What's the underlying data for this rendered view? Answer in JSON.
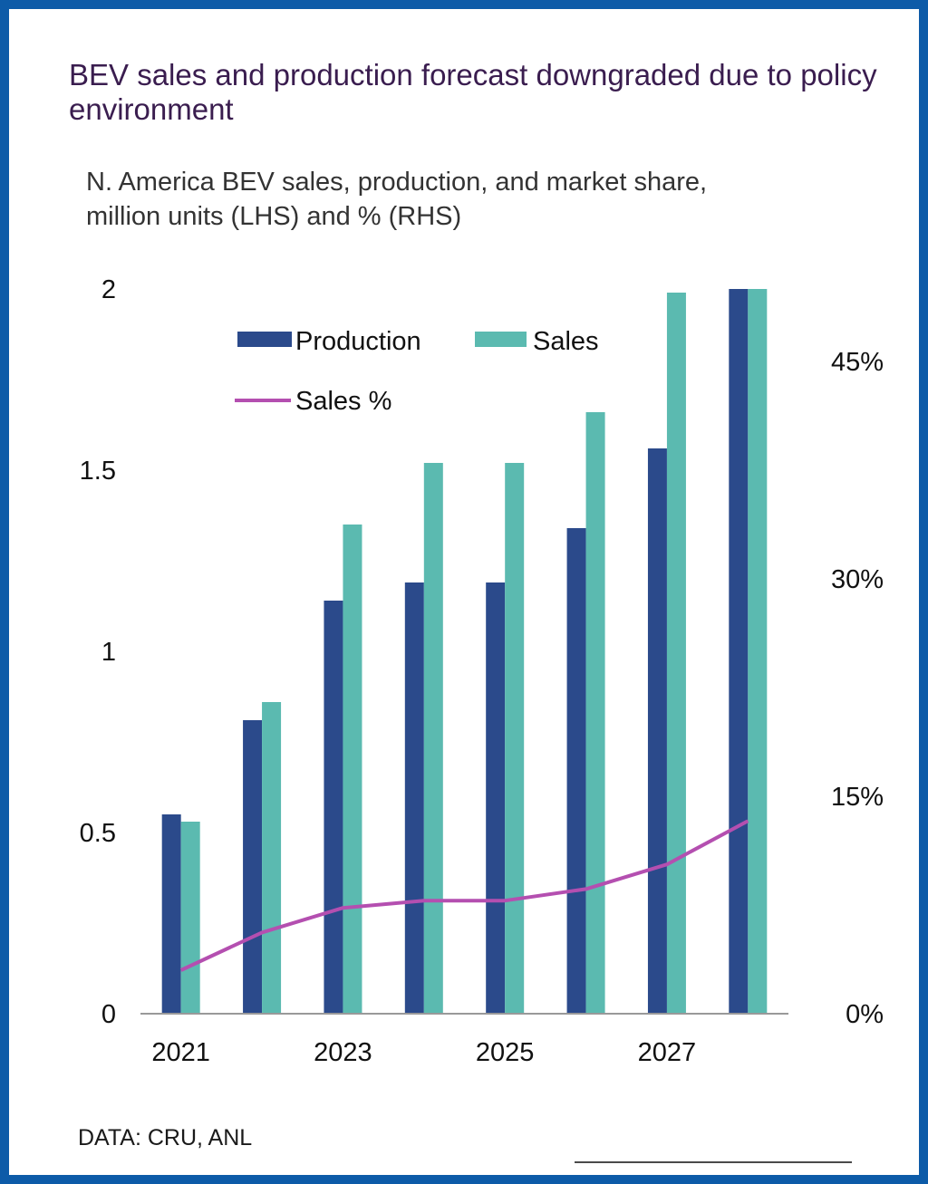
{
  "header": {
    "title": "BEV sales and production forecast downgraded due to policy environment",
    "subtitle": "N. America BEV sales, production, and market share, million units (LHS) and % (RHS)"
  },
  "footer": {
    "source": "DATA: CRU, ANL"
  },
  "colors": {
    "frame": "#0d5ba8",
    "production": "#2b4a8b",
    "sales": "#5bbab0",
    "sales_pct": "#b44fb0"
  },
  "chart_data": {
    "type": "bar",
    "categories": [
      "2021",
      "2022",
      "2023",
      "2024",
      "2025",
      "2026",
      "2027",
      "2028"
    ],
    "x_tick_labels": [
      "2021",
      "",
      "2023",
      "",
      "2025",
      "",
      "2027",
      ""
    ],
    "series": [
      {
        "name": "Production",
        "type": "bar",
        "axis": "left",
        "values": [
          0.55,
          0.81,
          1.14,
          1.19,
          1.19,
          1.34,
          1.56,
          2.0
        ]
      },
      {
        "name": "Sales",
        "type": "bar",
        "axis": "left",
        "values": [
          0.53,
          0.86,
          1.35,
          1.52,
          1.52,
          1.66,
          1.99,
          2.0
        ]
      },
      {
        "name": "Sales %",
        "type": "line",
        "axis": "right",
        "values": [
          3.0,
          5.6,
          7.3,
          7.8,
          7.8,
          8.6,
          10.3,
          13.3
        ]
      }
    ],
    "left_axis": {
      "range": [
        0,
        2
      ],
      "ticks": [
        0,
        0.5,
        1,
        1.5,
        2
      ],
      "tick_labels": [
        "0",
        "0.5",
        "1",
        "1.5",
        "2"
      ]
    },
    "right_axis": {
      "range": [
        0,
        50
      ],
      "ticks": [
        0,
        15,
        30,
        45
      ],
      "tick_labels": [
        "0%",
        "15%",
        "30%",
        "45%"
      ]
    },
    "legend": {
      "placement": "top-left"
    },
    "grid": false
  }
}
